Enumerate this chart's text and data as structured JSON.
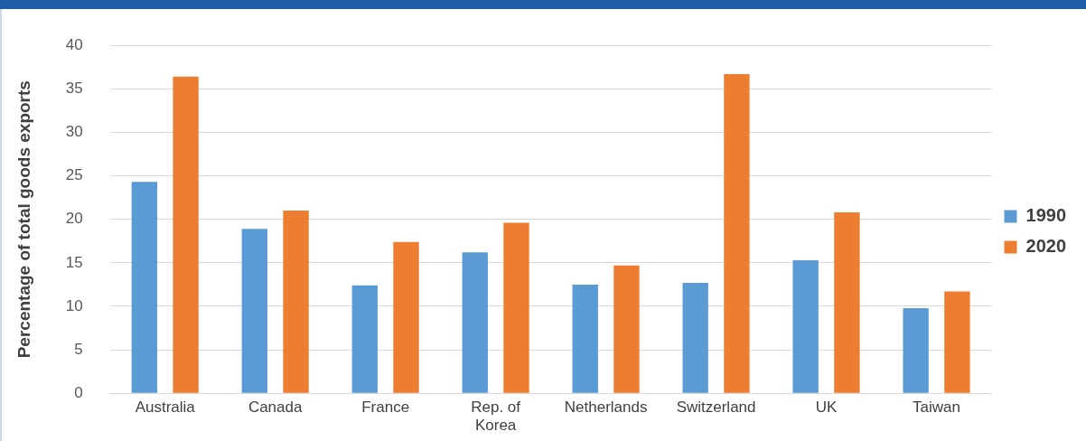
{
  "chart_data": {
    "type": "bar",
    "ylabel": "Percentage of total goods exports",
    "categories": [
      "Australia",
      "Canada",
      "France",
      "Rep. of Korea",
      "Netherlands",
      "Switzerland",
      "UK",
      "Taiwan"
    ],
    "series": [
      {
        "name": "1990",
        "color": "#5b9bd5",
        "values": [
          24.3,
          18.9,
          12.4,
          16.2,
          12.5,
          12.7,
          15.3,
          9.8
        ]
      },
      {
        "name": "2020",
        "color": "#ed7d31",
        "values": [
          36.4,
          21.0,
          17.4,
          19.6,
          14.7,
          36.7,
          20.8,
          11.7
        ]
      }
    ],
    "ylim": [
      0,
      40
    ],
    "yticks": [
      0,
      5,
      10,
      15,
      20,
      25,
      30,
      35,
      40
    ],
    "grid": "y",
    "legend": "right"
  }
}
